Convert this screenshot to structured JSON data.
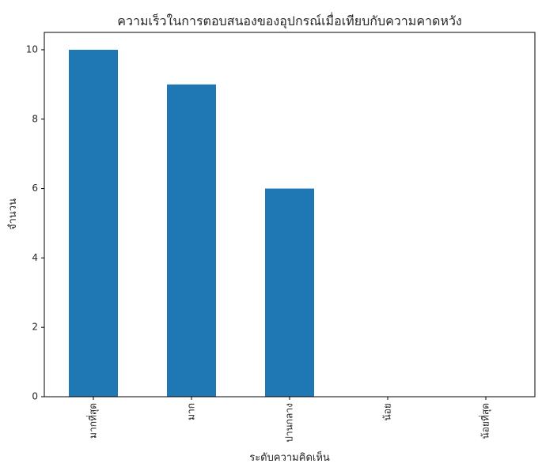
{
  "chart_data": {
    "type": "bar",
    "title": "ความเร็วในการตอบสนองของอุปกรณ์เมื่อเทียบกับความคาดหวัง",
    "xlabel": "ระดับความคิดเห็น",
    "ylabel": "จำนวน",
    "categories": [
      "มากที่สุด",
      "มาก",
      "ปานกลาง",
      "น้อย",
      "น้อยที่สุด"
    ],
    "values": [
      10,
      9,
      6,
      0,
      0
    ],
    "ylim": [
      0,
      10.5
    ],
    "yticks": [
      0,
      2,
      4,
      6,
      8,
      10
    ],
    "bar_color": "#1f77b4",
    "grid": false,
    "legend": "none"
  }
}
